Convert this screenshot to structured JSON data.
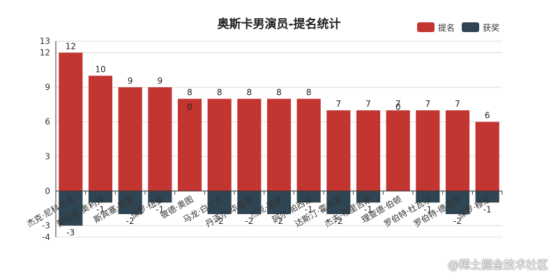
{
  "chart_data": {
    "type": "bar",
    "title": "奥斯卡男演员-提名统计",
    "categories": [
      "杰克·尼科尔森",
      "劳伦斯·奥利弗",
      "斯宾塞·屈塞",
      "保罗·纽曼",
      "彼德·奥图",
      "马龙·白兰度",
      "丹泽尔·华盛顿",
      "杰克·莱蒙",
      "阿尔·帕西诺",
      "达斯汀·霍夫曼",
      "杰夫·布里吉斯",
      "理查德·伯顿",
      "罗伯特·杜瓦尔",
      "罗伯特·德尼罗",
      "保罗·穆尼"
    ],
    "series": [
      {
        "name": "提名",
        "color": "#c23531",
        "values": [
          12,
          10,
          9,
          9,
          8,
          8,
          8,
          8,
          8,
          7,
          7,
          7,
          7,
          7,
          6
        ]
      },
      {
        "name": "获奖",
        "color": "#2f4554",
        "values": [
          -3,
          -1,
          -2,
          -1,
          0,
          -2,
          -2,
          -2,
          -1,
          -2,
          -1,
          0,
          -1,
          -2,
          -1
        ]
      }
    ],
    "ylim": [
      -4,
      13
    ],
    "yticks": [
      -4,
      -3,
      0,
      3,
      6,
      9,
      12,
      13
    ],
    "legend_position": "top-right",
    "stacked": true,
    "grid": true
  },
  "watermark": "@稀土掘金技术社区"
}
